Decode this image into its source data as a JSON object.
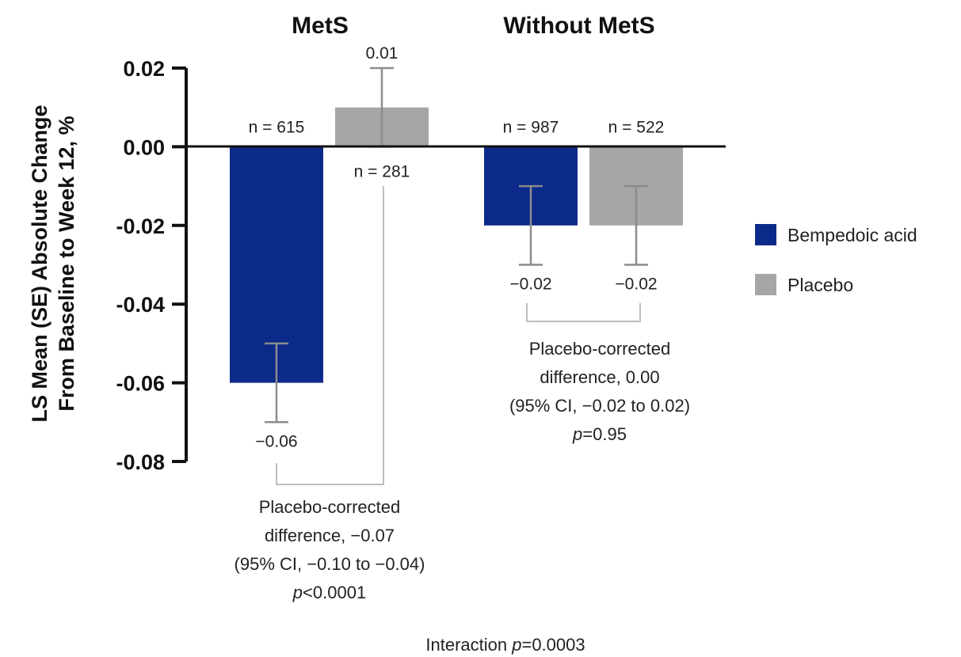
{
  "chart_data": {
    "type": "bar",
    "ylabel_line1": "LS Mean (SE) Absolute Change",
    "ylabel_line2": "From Baseline to Week 12, %",
    "ylim": [
      -0.08,
      0.02
    ],
    "y_ticks": [
      "0.02",
      "0.00",
      "-0.02",
      "-0.04",
      "-0.06",
      "-0.08"
    ],
    "y_tick_values": [
      0.02,
      0.0,
      -0.02,
      -0.04,
      -0.06,
      -0.08
    ],
    "categories": [
      "MetS",
      "Without MetS"
    ],
    "series": [
      {
        "name": "Bempedoic acid",
        "color": "#0b2a8a",
        "values": [
          -0.06,
          -0.02
        ],
        "se": [
          0.01,
          0.01
        ],
        "value_labels": [
          "−0.06",
          "−0.02"
        ],
        "n_labels": [
          "n = 615",
          "n = 987"
        ]
      },
      {
        "name": "Placebo",
        "color": "#a6a6a8",
        "values": [
          0.01,
          -0.02
        ],
        "se": [
          0.01,
          0.01
        ],
        "value_labels": [
          "0.01",
          "−0.02"
        ],
        "n_labels": [
          "n = 281",
          "n = 522"
        ]
      }
    ],
    "annotations": {
      "mets": {
        "line1": "Placebo-corrected",
        "line2": "difference, −0.07",
        "line3": "(95% CI, −0.10 to −0.04)",
        "p_italic": "p",
        "p_rest": "<0.0001"
      },
      "without": {
        "line1": "Placebo-corrected",
        "line2": "difference, 0.00",
        "line3": "(95% CI, −0.02 to 0.02)",
        "p_italic": "p",
        "p_rest": "=0.95"
      },
      "interaction_prefix": "Interaction ",
      "interaction_italic": "p",
      "interaction_rest": "=0.0003"
    },
    "legend_position": "right",
    "grid": false
  }
}
